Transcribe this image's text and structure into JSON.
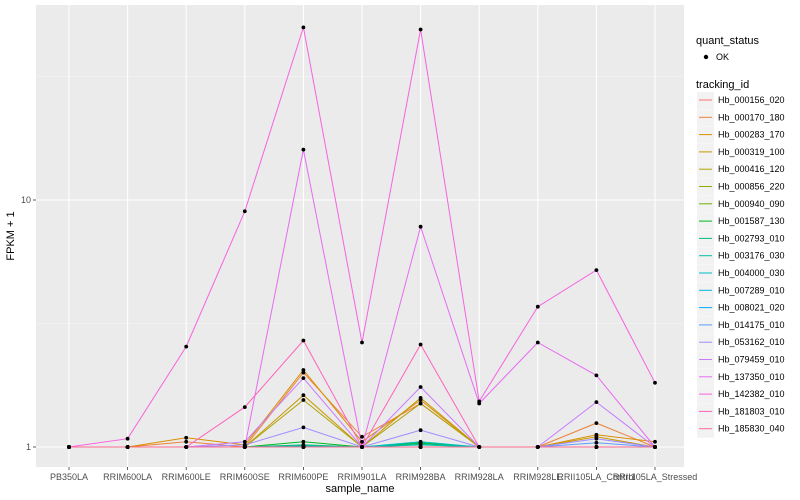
{
  "chart_data": {
    "type": "line",
    "title": "",
    "xlabel": "sample_name",
    "ylabel": "FPKM + 1",
    "y_scale": "log10",
    "ylim": [
      0.9,
      60
    ],
    "y_ticks": [
      1,
      10
    ],
    "y_tick_labels": [
      "1",
      "10"
    ],
    "grid": true,
    "legend_position": "right",
    "categories": [
      "PB350LA",
      "RRIM600LA",
      "RRIM600LE",
      "RRIM600SE",
      "RRIM600PE",
      "RRIM901LA",
      "RRIM928BA",
      "RRIM928LA",
      "RRIM928LE",
      "RRII105LA_Control",
      "RRII105LA_Stressed"
    ],
    "legend_points": {
      "title": "quant_status",
      "label": "OK"
    },
    "legend_lines": {
      "title": "tracking_id"
    },
    "series": [
      {
        "name": "Hb_000156_020",
        "color": "#F8766D",
        "values": [
          1.0,
          1.0,
          1.0,
          1.0,
          1.0,
          1.0,
          1.0,
          1.0,
          1.0,
          1.0,
          1.0
        ]
      },
      {
        "name": "Hb_000170_180",
        "color": "#EC8239",
        "values": [
          1.0,
          1.0,
          1.05,
          1.0,
          2.0,
          1.1,
          1.5,
          1.0,
          1.0,
          1.25,
          1.0
        ]
      },
      {
        "name": "Hb_000283_170",
        "color": "#DB8E00",
        "values": [
          1.0,
          1.0,
          1.09,
          1.02,
          2.05,
          1.05,
          1.55,
          1.0,
          1.0,
          1.12,
          1.05
        ]
      },
      {
        "name": "Hb_000319_100",
        "color": "#C79800",
        "values": [
          1.0,
          1.0,
          1.0,
          1.0,
          1.62,
          1.0,
          1.58,
          1.0,
          1.0,
          1.1,
          1.0
        ]
      },
      {
        "name": "Hb_000416_120",
        "color": "#AFA100",
        "values": [
          1.0,
          1.0,
          1.0,
          1.0,
          1.55,
          1.0,
          1.5,
          1.0,
          1.0,
          1.0,
          1.0
        ]
      },
      {
        "name": "Hb_000856_220",
        "color": "#96A900",
        "values": [
          1.0,
          1.0,
          1.0,
          1.0,
          1.0,
          1.0,
          1.0,
          1.0,
          1.0,
          1.0,
          1.0
        ]
      },
      {
        "name": "Hb_000940_090",
        "color": "#72B000",
        "values": [
          1.0,
          1.0,
          1.0,
          1.0,
          1.0,
          1.0,
          1.0,
          1.0,
          1.0,
          1.0,
          1.0
        ]
      },
      {
        "name": "Hb_001587_130",
        "color": "#00B81F",
        "values": [
          1.0,
          1.0,
          1.0,
          1.0,
          1.05,
          1.0,
          1.04,
          1.0,
          1.0,
          1.0,
          1.0
        ]
      },
      {
        "name": "Hb_002793_010",
        "color": "#00BC80",
        "values": [
          1.0,
          1.0,
          1.0,
          1.0,
          1.02,
          1.0,
          1.03,
          1.0,
          1.0,
          1.0,
          1.0
        ]
      },
      {
        "name": "Hb_003176_030",
        "color": "#00BFA9",
        "values": [
          1.0,
          1.0,
          1.0,
          1.0,
          1.01,
          1.0,
          1.02,
          1.0,
          1.0,
          1.0,
          1.0
        ]
      },
      {
        "name": "Hb_004000_030",
        "color": "#00BFC4",
        "values": [
          1.0,
          1.0,
          1.0,
          1.0,
          1.0,
          1.0,
          1.05,
          1.0,
          1.0,
          1.0,
          1.0
        ]
      },
      {
        "name": "Hb_007289_010",
        "color": "#00B9E3",
        "values": [
          1.0,
          1.0,
          1.0,
          1.0,
          1.0,
          1.0,
          1.0,
          1.0,
          1.0,
          1.0,
          1.0
        ]
      },
      {
        "name": "Hb_008021_020",
        "color": "#00ADFA",
        "values": [
          1.0,
          1.0,
          1.0,
          1.0,
          1.0,
          1.0,
          1.0,
          1.0,
          1.0,
          1.0,
          1.0
        ]
      },
      {
        "name": "Hb_014175_010",
        "color": "#619CFF",
        "values": [
          1.0,
          1.0,
          1.0,
          1.0,
          1.0,
          1.0,
          1.0,
          1.0,
          1.0,
          1.04,
          1.0
        ]
      },
      {
        "name": "Hb_053162_010",
        "color": "#9F8CFF",
        "values": [
          1.0,
          1.0,
          1.0,
          1.02,
          1.2,
          1.0,
          1.17,
          1.0,
          1.0,
          1.08,
          1.0
        ]
      },
      {
        "name": "Hb_079459_010",
        "color": "#C77CFF",
        "values": [
          1.0,
          1.0,
          1.0,
          1.05,
          1.9,
          1.0,
          1.75,
          1.0,
          1.0,
          1.52,
          1.0
        ]
      },
      {
        "name": "Hb_137350_010",
        "color": "#E76BF3",
        "values": [
          1.0,
          1.0,
          1.0,
          1.0,
          16.0,
          1.0,
          7.8,
          1.5,
          2.65,
          1.95,
          1.0
        ]
      },
      {
        "name": "Hb_142382_010",
        "color": "#F763E0",
        "values": [
          1.0,
          1.08,
          2.55,
          9.0,
          50.0,
          2.65,
          49.0,
          1.53,
          3.7,
          5.2,
          1.82
        ]
      },
      {
        "name": "Hb_181803_010",
        "color": "#FF62BC",
        "values": [
          1.0,
          1.0,
          1.0,
          1.45,
          2.7,
          1.0,
          2.6,
          1.0,
          1.0,
          1.0,
          1.0
        ]
      },
      {
        "name": "Hb_185830_040",
        "color": "#FF6C91",
        "values": [
          1.0,
          1.0,
          1.0,
          1.0,
          1.0,
          1.0,
          1.0,
          1.0,
          1.0,
          1.0,
          1.0
        ]
      }
    ]
  }
}
